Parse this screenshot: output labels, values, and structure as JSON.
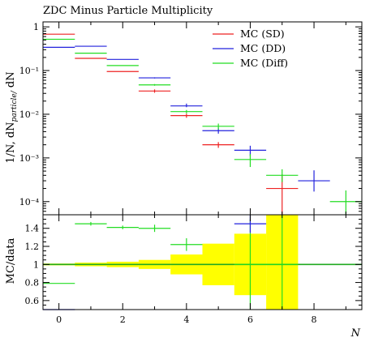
{
  "chart_data": {
    "type": "line",
    "title": "ZDC Minus Particle Multiplicity",
    "xlabel": "N",
    "ylabel": "1/N, dN_particle/ dN",
    "xlim": [
      -0.5,
      9.5
    ],
    "upper": {
      "yscale": "log",
      "ylim": [
        5e-05,
        1.3
      ],
      "yticks": [
        {
          "v": 1,
          "label": "1"
        },
        {
          "v": 0.1,
          "label": "10⁻¹"
        },
        {
          "v": 0.01,
          "label": "10⁻²"
        },
        {
          "v": 0.001,
          "label": "10⁻³"
        },
        {
          "v": 0.0001,
          "label": "10⁻⁴"
        }
      ],
      "legend_position": "top-right"
    },
    "ratio": {
      "ylabel": "MC/data",
      "ylim": [
        0.5,
        1.55
      ],
      "yticks": [
        {
          "v": 0.6,
          "label": "0.6"
        },
        {
          "v": 0.8,
          "label": "0.8"
        },
        {
          "v": 1.0,
          "label": "1"
        },
        {
          "v": 1.2,
          "label": "1.2"
        },
        {
          "v": 1.4,
          "label": "1.4"
        }
      ],
      "band_color": "#ffff00",
      "band": [
        {
          "x0": -0.5,
          "x1": 0.5,
          "lo": 0.99,
          "hi": 1.01
        },
        {
          "x0": 0.5,
          "x1": 1.5,
          "lo": 0.98,
          "hi": 1.02
        },
        {
          "x0": 1.5,
          "x1": 2.5,
          "lo": 0.97,
          "hi": 1.03
        },
        {
          "x0": 2.5,
          "x1": 3.5,
          "lo": 0.95,
          "hi": 1.05
        },
        {
          "x0": 3.5,
          "x1": 4.5,
          "lo": 0.89,
          "hi": 1.11
        },
        {
          "x0": 4.5,
          "x1": 5.5,
          "lo": 0.77,
          "hi": 1.23
        },
        {
          "x0": 5.5,
          "x1": 6.5,
          "lo": 0.66,
          "hi": 1.34
        },
        {
          "x0": 6.5,
          "x1": 7.5,
          "lo": 0.5,
          "hi": 1.55
        }
      ],
      "series": [
        {
          "name": "MC (Diff)",
          "color": "#22dd22",
          "points": [
            {
              "x0": -0.5,
              "x1": 0.5,
              "y": 0.79,
              "elo": 0.0,
              "ehi": 0.0
            },
            {
              "x0": 0.5,
              "x1": 1.5,
              "y": 1.45,
              "elo": 0.02,
              "ehi": 0.02
            },
            {
              "x0": 1.5,
              "x1": 2.5,
              "y": 1.41,
              "elo": 0.02,
              "ehi": 0.02
            },
            {
              "x0": 2.5,
              "x1": 3.5,
              "y": 1.4,
              "elo": 0.04,
              "ehi": 0.04
            },
            {
              "x0": 3.5,
              "x1": 4.5,
              "y": 1.22,
              "elo": 0.07,
              "ehi": 0.07
            },
            {
              "x0": 5.5,
              "x1": 6.5,
              "y": 1.0,
              "elo": 0.5,
              "ehi": 0.5
            },
            {
              "x0": 6.5,
              "x1": 7.5,
              "y": 1.0,
              "elo": 0.5,
              "ehi": 0.55
            }
          ]
        },
        {
          "name": "MC (DD)",
          "color": "#2222dd",
          "points": [
            {
              "x0": -0.5,
              "x1": 0.5,
              "y": 0.5,
              "elo": 0.0,
              "ehi": 0.0
            },
            {
              "x0": 5.5,
              "x1": 6.5,
              "y": 1.45,
              "elo": 0.1,
              "ehi": 0.1
            }
          ]
        }
      ]
    },
    "series": [
      {
        "name": "MC (SD)",
        "color": "#ee2222",
        "points": [
          {
            "x0": -0.5,
            "x1": 0.5,
            "y": 0.68,
            "elo": 0.0,
            "ehi": 0.0
          },
          {
            "x0": 0.5,
            "x1": 1.5,
            "y": 0.19,
            "elo": 0.0,
            "ehi": 0.0
          },
          {
            "x0": 1.5,
            "x1": 2.5,
            "y": 0.095,
            "elo": 0.0,
            "ehi": 0.0
          },
          {
            "x0": 2.5,
            "x1": 3.5,
            "y": 0.034,
            "elo": 0.003,
            "ehi": 0.003
          },
          {
            "x0": 3.5,
            "x1": 4.5,
            "y": 0.0093,
            "elo": 0.001,
            "ehi": 0.001
          },
          {
            "x0": 4.5,
            "x1": 5.5,
            "y": 0.002,
            "elo": 0.0003,
            "ehi": 0.0003
          },
          {
            "x0": 6.5,
            "x1": 7.5,
            "y": 0.0002,
            "elo": 0.00015,
            "ehi": 0.00022
          }
        ]
      },
      {
        "name": "MC (DD)",
        "color": "#2222dd",
        "points": [
          {
            "x0": -0.5,
            "x1": 0.5,
            "y": 0.34,
            "elo": 0.0,
            "ehi": 0.0
          },
          {
            "x0": 0.5,
            "x1": 1.5,
            "y": 0.36,
            "elo": 0.0,
            "ehi": 0.0
          },
          {
            "x0": 1.5,
            "x1": 2.5,
            "y": 0.18,
            "elo": 0.0,
            "ehi": 0.0
          },
          {
            "x0": 2.5,
            "x1": 3.5,
            "y": 0.068,
            "elo": 0.002,
            "ehi": 0.002
          },
          {
            "x0": 3.5,
            "x1": 4.5,
            "y": 0.0155,
            "elo": 0.001,
            "ehi": 0.002
          },
          {
            "x0": 4.5,
            "x1": 5.5,
            "y": 0.0042,
            "elo": 0.0006,
            "ehi": 0.0007
          },
          {
            "x0": 5.5,
            "x1": 6.5,
            "y": 0.0015,
            "elo": 0.0004,
            "ehi": 0.0004
          },
          {
            "x0": 7.5,
            "x1": 8.5,
            "y": 0.0003,
            "elo": 0.00013,
            "ehi": 0.00022
          }
        ]
      },
      {
        "name": "MC (Diff)",
        "color": "#22dd22",
        "points": [
          {
            "x0": -0.5,
            "x1": 0.5,
            "y": 0.52,
            "elo": 0.0,
            "ehi": 0.0
          },
          {
            "x0": 0.5,
            "x1": 1.5,
            "y": 0.25,
            "elo": 0.0,
            "ehi": 0.0
          },
          {
            "x0": 1.5,
            "x1": 2.5,
            "y": 0.13,
            "elo": 0.0,
            "ehi": 0.0
          },
          {
            "x0": 2.5,
            "x1": 3.5,
            "y": 0.047,
            "elo": 0.002,
            "ehi": 0.002
          },
          {
            "x0": 3.5,
            "x1": 4.5,
            "y": 0.0115,
            "elo": 0.001,
            "ehi": 0.001
          },
          {
            "x0": 4.5,
            "x1": 5.5,
            "y": 0.0053,
            "elo": 0.0008,
            "ehi": 0.0008
          },
          {
            "x0": 5.5,
            "x1": 6.5,
            "y": 0.00092,
            "elo": 0.0003,
            "ehi": 0.0003
          },
          {
            "x0": 6.5,
            "x1": 7.5,
            "y": 0.0004,
            "elo": 0.00012,
            "ehi": 0.00015
          },
          {
            "x0": 8.5,
            "x1": 9.5,
            "y": 0.0001,
            "elo": 5e-05,
            "ehi": 8e-05
          }
        ]
      }
    ],
    "xticks": [
      {
        "v": 0,
        "label": "0"
      },
      {
        "v": 2,
        "label": "2"
      },
      {
        "v": 4,
        "label": "4"
      },
      {
        "v": 6,
        "label": "6"
      },
      {
        "v": 8,
        "label": "8"
      }
    ]
  }
}
